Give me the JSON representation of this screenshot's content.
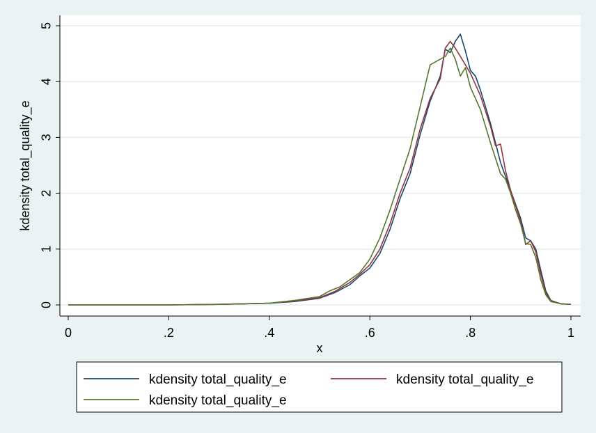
{
  "chart_data": {
    "type": "line",
    "xlabel": "x",
    "ylabel": "kdensity total_quality_e",
    "xlim": [
      0,
      1
    ],
    "ylim": [
      0,
      5
    ],
    "x_ticks": [
      0,
      0.2,
      0.4,
      0.6,
      0.8,
      1
    ],
    "x_tick_labels": [
      "0",
      ".2",
      ".4",
      ".6",
      ".8",
      "1"
    ],
    "y_ticks": [
      0,
      1,
      2,
      3,
      4,
      5
    ],
    "y_tick_labels": [
      "0",
      "1",
      "2",
      "3",
      "4",
      "5"
    ],
    "grid": "horizontal",
    "legend_position": "bottom",
    "colors": {
      "background": "#eaf2f3",
      "plot": "#ffffff",
      "grid": "#e4eef0"
    },
    "series": [
      {
        "name": "kdensity total_quality_e",
        "color": "#1a476f",
        "points": [
          [
            0,
            0
          ],
          [
            0.1,
            0
          ],
          [
            0.2,
            0
          ],
          [
            0.3,
            0.01
          ],
          [
            0.4,
            0.03
          ],
          [
            0.45,
            0.06
          ],
          [
            0.5,
            0.12
          ],
          [
            0.53,
            0.22
          ],
          [
            0.56,
            0.36
          ],
          [
            0.58,
            0.52
          ],
          [
            0.6,
            0.66
          ],
          [
            0.62,
            0.92
          ],
          [
            0.64,
            1.35
          ],
          [
            0.66,
            1.9
          ],
          [
            0.68,
            2.35
          ],
          [
            0.7,
            3.05
          ],
          [
            0.72,
            3.65
          ],
          [
            0.74,
            4.1
          ],
          [
            0.75,
            4.58
          ],
          [
            0.76,
            4.52
          ],
          [
            0.77,
            4.72
          ],
          [
            0.78,
            4.85
          ],
          [
            0.79,
            4.55
          ],
          [
            0.8,
            4.2
          ],
          [
            0.81,
            4.1
          ],
          [
            0.82,
            3.85
          ],
          [
            0.84,
            3.25
          ],
          [
            0.86,
            2.55
          ],
          [
            0.88,
            2.05
          ],
          [
            0.9,
            1.55
          ],
          [
            0.91,
            1.2
          ],
          [
            0.92,
            1.15
          ],
          [
            0.93,
            1.0
          ],
          [
            0.94,
            0.62
          ],
          [
            0.95,
            0.25
          ],
          [
            0.96,
            0.08
          ],
          [
            0.98,
            0.02
          ],
          [
            1.0,
            0.01
          ]
        ]
      },
      {
        "name": "kdensity total_quality_e",
        "color": "#90353b",
        "points": [
          [
            0,
            0
          ],
          [
            0.1,
            0
          ],
          [
            0.2,
            0
          ],
          [
            0.3,
            0.01
          ],
          [
            0.4,
            0.03
          ],
          [
            0.45,
            0.07
          ],
          [
            0.5,
            0.13
          ],
          [
            0.53,
            0.24
          ],
          [
            0.56,
            0.4
          ],
          [
            0.58,
            0.55
          ],
          [
            0.6,
            0.72
          ],
          [
            0.62,
            1.0
          ],
          [
            0.64,
            1.45
          ],
          [
            0.66,
            2.0
          ],
          [
            0.68,
            2.45
          ],
          [
            0.7,
            3.15
          ],
          [
            0.72,
            3.7
          ],
          [
            0.74,
            4.05
          ],
          [
            0.75,
            4.6
          ],
          [
            0.76,
            4.72
          ],
          [
            0.77,
            4.6
          ],
          [
            0.78,
            4.45
          ],
          [
            0.8,
            4.15
          ],
          [
            0.82,
            3.75
          ],
          [
            0.84,
            3.2
          ],
          [
            0.85,
            2.85
          ],
          [
            0.86,
            2.88
          ],
          [
            0.87,
            2.4
          ],
          [
            0.88,
            2.05
          ],
          [
            0.9,
            1.5
          ],
          [
            0.91,
            1.08
          ],
          [
            0.92,
            1.15
          ],
          [
            0.93,
            0.95
          ],
          [
            0.94,
            0.55
          ],
          [
            0.95,
            0.22
          ],
          [
            0.96,
            0.07
          ],
          [
            0.98,
            0.02
          ],
          [
            1.0,
            0.01
          ]
        ]
      },
      {
        "name": "kdensity total_quality_e",
        "color": "#55752f",
        "points": [
          [
            0,
            0
          ],
          [
            0.1,
            0
          ],
          [
            0.2,
            0
          ],
          [
            0.3,
            0.01
          ],
          [
            0.4,
            0.03
          ],
          [
            0.45,
            0.08
          ],
          [
            0.5,
            0.15
          ],
          [
            0.52,
            0.25
          ],
          [
            0.54,
            0.32
          ],
          [
            0.56,
            0.45
          ],
          [
            0.58,
            0.58
          ],
          [
            0.6,
            0.82
          ],
          [
            0.62,
            1.2
          ],
          [
            0.64,
            1.7
          ],
          [
            0.66,
            2.25
          ],
          [
            0.68,
            2.8
          ],
          [
            0.7,
            3.55
          ],
          [
            0.72,
            4.3
          ],
          [
            0.73,
            4.35
          ],
          [
            0.74,
            4.4
          ],
          [
            0.75,
            4.45
          ],
          [
            0.76,
            4.6
          ],
          [
            0.77,
            4.4
          ],
          [
            0.78,
            4.1
          ],
          [
            0.79,
            4.25
          ],
          [
            0.8,
            3.9
          ],
          [
            0.81,
            3.7
          ],
          [
            0.82,
            3.5
          ],
          [
            0.84,
            2.9
          ],
          [
            0.86,
            2.35
          ],
          [
            0.87,
            2.25
          ],
          [
            0.88,
            2.0
          ],
          [
            0.89,
            1.7
          ],
          [
            0.9,
            1.45
          ],
          [
            0.91,
            1.1
          ],
          [
            0.92,
            1.08
          ],
          [
            0.93,
            0.85
          ],
          [
            0.94,
            0.45
          ],
          [
            0.95,
            0.18
          ],
          [
            0.96,
            0.06
          ],
          [
            0.98,
            0.02
          ],
          [
            1.0,
            0.01
          ]
        ]
      }
    ]
  }
}
